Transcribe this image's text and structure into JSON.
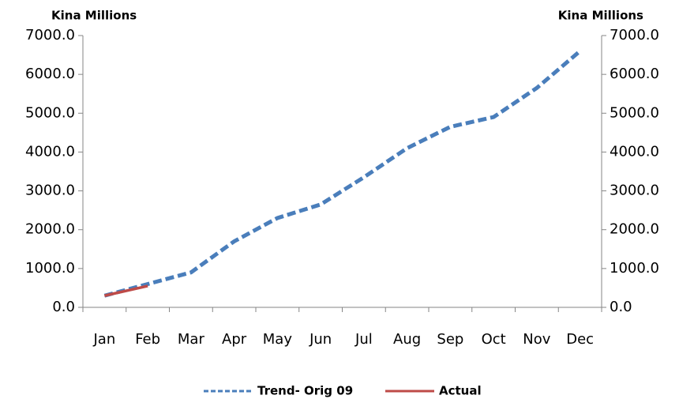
{
  "chart_data": {
    "type": "line",
    "ylabel": "Kina Millions",
    "y2label": "Kina Millions",
    "categories": [
      "Jan",
      "Feb",
      "Mar",
      "Apr",
      "May",
      "Jun",
      "Jul",
      "Aug",
      "Sep",
      "Oct",
      "Nov",
      "Dec"
    ],
    "series": [
      {
        "name": "Trend- Orig 09",
        "color": "#4a7ebb",
        "dash": "dashed",
        "values": [
          300,
          600,
          900,
          1700,
          2300,
          2650,
          3350,
          4100,
          4650,
          4900,
          5650,
          6600
        ]
      },
      {
        "name": "Actual",
        "color": "#be4b48",
        "dash": "solid",
        "values": [
          300,
          550,
          null,
          null,
          null,
          null,
          null,
          null,
          null,
          null,
          null,
          null
        ]
      }
    ],
    "ylim": [
      0,
      7000
    ],
    "yticks": [
      {
        "value": 0,
        "label": "0.0"
      },
      {
        "value": 1000,
        "label": "1000.0"
      },
      {
        "value": 2000,
        "label": "2000.0"
      },
      {
        "value": 3000,
        "label": "3000.0"
      },
      {
        "value": 4000,
        "label": "4000.0"
      },
      {
        "value": 5000,
        "label": "5000.0"
      },
      {
        "value": 6000,
        "label": "6000.0"
      },
      {
        "value": 7000,
        "label": "7000.0"
      }
    ],
    "y2lim": [
      0,
      7000
    ],
    "y2ticks": [
      {
        "value": 0,
        "label": "0.0"
      },
      {
        "value": 1000,
        "label": "1000.0"
      },
      {
        "value": 2000,
        "label": "2000.0"
      },
      {
        "value": 3000,
        "label": "3000.0"
      },
      {
        "value": 4000,
        "label": "4000.0"
      },
      {
        "value": 5000,
        "label": "5000.0"
      },
      {
        "value": 6000,
        "label": "6000.0"
      },
      {
        "value": 7000,
        "label": "7000.0"
      }
    ],
    "legend": "bottom",
    "grid": false
  }
}
